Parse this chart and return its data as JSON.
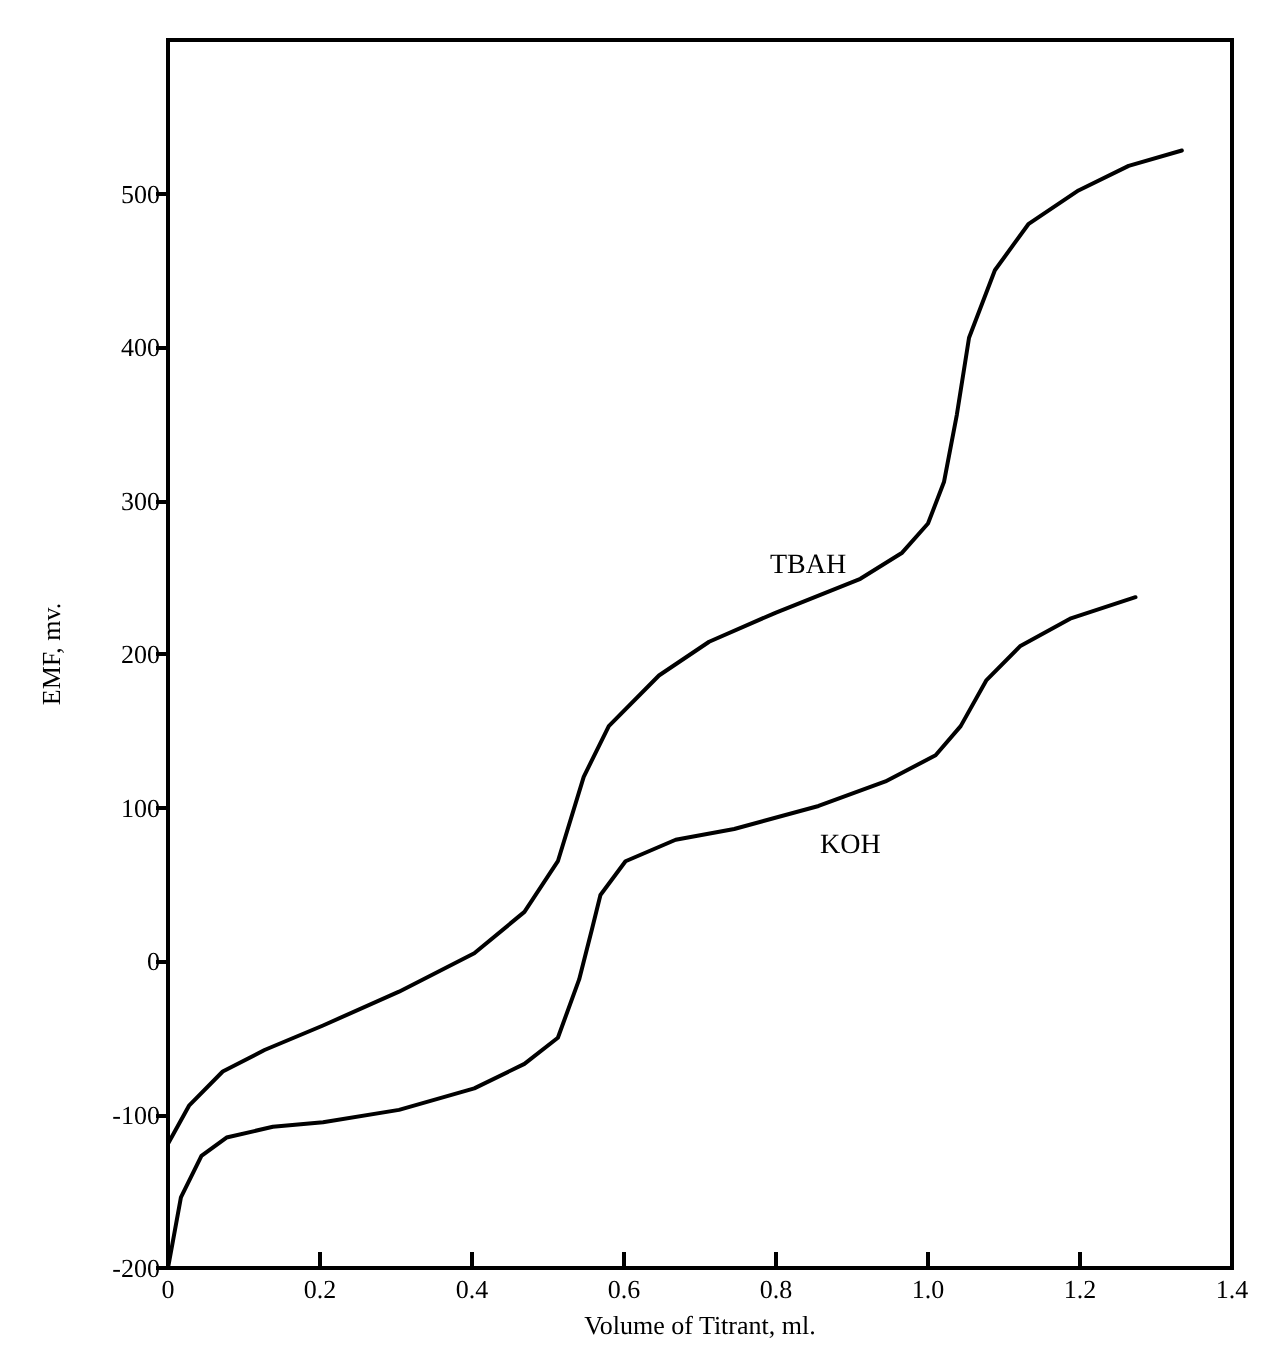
{
  "chart_data": {
    "type": "line",
    "xlabel": "Volume of Titrant, ml.",
    "ylabel": "EMF, mv.",
    "xlim": [
      0,
      1.4
    ],
    "ylim": [
      -200,
      600
    ],
    "xticks": [
      0,
      0.2,
      0.4,
      0.6,
      0.8,
      {
        "value": 1,
        "label": "1.0"
      },
      1.2,
      1.4
    ],
    "yticks": [
      -200,
      -100,
      0,
      100,
      200,
      300,
      400,
      500
    ],
    "grid": false,
    "marker": "none",
    "line_style": "solid",
    "series": [
      {
        "name": "TBAH",
        "color": "#000000",
        "x": [
          0,
          0.028,
          0.072,
          0.127,
          0.204,
          0.304,
          0.403,
          0.469,
          0.513,
          0.547,
          0.58,
          0.646,
          0.712,
          0.8,
          0.911,
          0.966,
          1.0,
          1.021,
          1.038,
          1.054,
          1.088,
          1.132,
          1.198,
          1.264,
          1.334
        ],
        "values": [
          -119,
          -94,
          -72,
          -58,
          -42,
          -20,
          5,
          32,
          65,
          120,
          153,
          186,
          208,
          227,
          249,
          266,
          285,
          312,
          356,
          406,
          450,
          480,
          502,
          518,
          528
        ]
      },
      {
        "name": "KOH",
        "color": "#000000",
        "x": [
          0,
          0.017,
          0.044,
          0.077,
          0.138,
          0.204,
          0.304,
          0.403,
          0.469,
          0.513,
          0.541,
          0.558,
          0.569,
          0.602,
          0.668,
          0.745,
          0.856,
          0.944,
          1.01,
          1.043,
          1.077,
          1.121,
          1.187,
          1.273
        ],
        "values": [
          -200,
          -154,
          -127,
          -115,
          -108,
          -105,
          -97,
          -83,
          -67,
          -50,
          -12,
          21,
          43,
          65,
          79,
          86,
          101,
          117,
          134,
          153,
          183,
          205,
          223,
          237
        ]
      }
    ]
  }
}
